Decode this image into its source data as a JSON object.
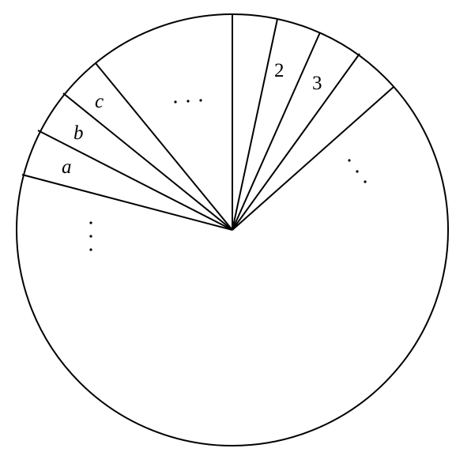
{
  "diagram": {
    "segment_labels": [
      "a",
      "b",
      "c",
      "2",
      "3"
    ],
    "ellipsis_marks": [
      "horizontal-dots",
      "diagonal-dots",
      "vertical-dots"
    ]
  }
}
